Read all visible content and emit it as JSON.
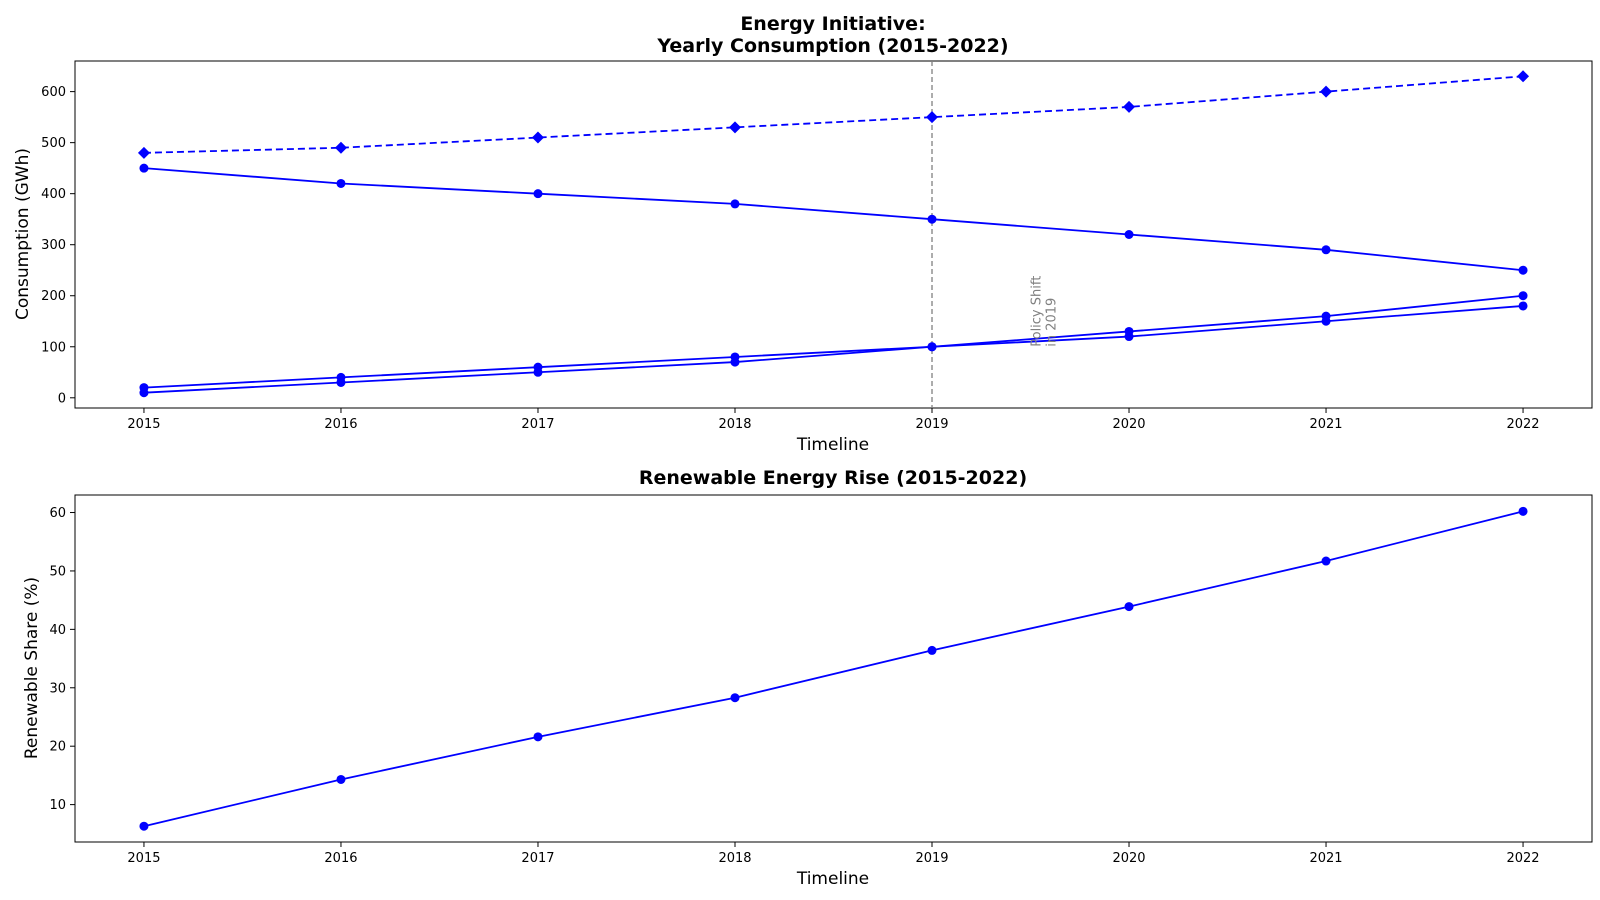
{
  "chart_data": [
    {
      "type": "line",
      "title_line1": "Energy Initiative:",
      "title_line2": "Yearly Consumption (2015-2022)",
      "xlabel": "Timeline",
      "ylabel": "Consumption (GWh)",
      "x": [
        2015,
        2016,
        2017,
        2018,
        2019,
        2020,
        2021,
        2022
      ],
      "xlim": [
        2014.65,
        2022.35
      ],
      "ylim": [
        -20,
        660
      ],
      "yticks": [
        0,
        100,
        200,
        300,
        400,
        500,
        600
      ],
      "grid": false,
      "legend": "none",
      "series": [
        {
          "values": [
            480,
            490,
            510,
            530,
            550,
            570,
            600,
            630
          ],
          "color": "#0000ff",
          "linestyle": "dashed",
          "marker": "diamond"
        },
        {
          "values": [
            450,
            420,
            400,
            380,
            350,
            320,
            290,
            250
          ],
          "color": "#0000ff",
          "linestyle": "solid",
          "marker": "circle"
        },
        {
          "values": [
            20,
            40,
            60,
            80,
            100,
            130,
            160,
            200
          ],
          "color": "#0000ff",
          "linestyle": "solid",
          "marker": "circle"
        },
        {
          "values": [
            10,
            30,
            50,
            70,
            100,
            120,
            150,
            180
          ],
          "color": "#0000ff",
          "linestyle": "solid",
          "marker": "circle"
        }
      ],
      "vline": {
        "x": 2019,
        "color": "#808080",
        "linestyle": "dashed"
      },
      "annotation": {
        "lines": [
          "Policy Shift",
          "in 2019"
        ],
        "x": 2019.55,
        "y": 100,
        "color": "#808080",
        "rotation": 90
      }
    },
    {
      "type": "line",
      "title": "Renewable Energy Rise (2015-2022)",
      "xlabel": "Timeline",
      "ylabel": "Renewable Share (%)",
      "x": [
        2015,
        2016,
        2017,
        2018,
        2019,
        2020,
        2021,
        2022
      ],
      "xlim": [
        2014.65,
        2022.35
      ],
      "ylim": [
        3.6,
        63
      ],
      "yticks": [
        10,
        20,
        30,
        40,
        50,
        60
      ],
      "grid": false,
      "legend": "none",
      "series": [
        {
          "values": [
            6.3,
            14.3,
            21.6,
            28.3,
            36.4,
            43.9,
            51.7,
            60.2
          ],
          "color": "#0000ff",
          "linestyle": "solid",
          "marker": "circle"
        }
      ]
    }
  ]
}
